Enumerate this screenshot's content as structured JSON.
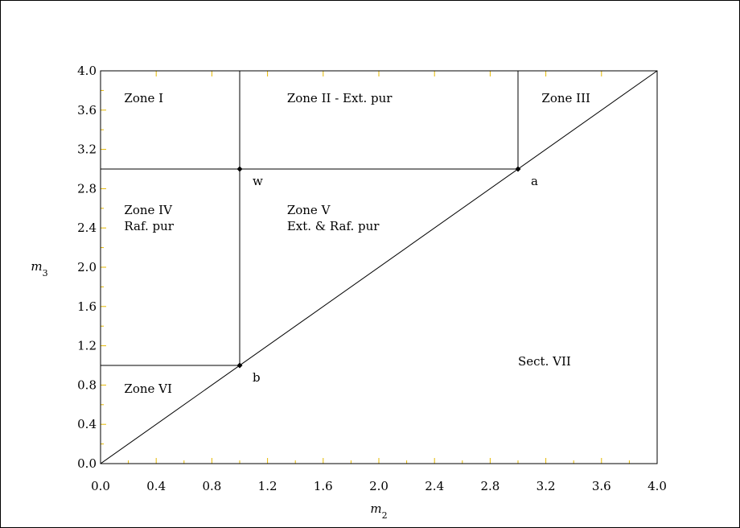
{
  "chart_data": {
    "type": "line",
    "xlabel": "m",
    "xlabel_sub": "2",
    "ylabel": "m",
    "ylabel_sub": "3",
    "xlim": [
      0.0,
      4.0
    ],
    "ylim": [
      0.0,
      4.0
    ],
    "x_ticks": [
      "0.0",
      "0.4",
      "0.8",
      "1.2",
      "1.6",
      "2.0",
      "2.4",
      "2.8",
      "3.2",
      "3.6",
      "4.0"
    ],
    "y_ticks": [
      "0.0",
      "0.4",
      "0.8",
      "1.2",
      "1.6",
      "2.0",
      "2.4",
      "2.8",
      "3.2",
      "3.6",
      "4.0"
    ],
    "grid": false,
    "lines": [
      {
        "name": "diagonal",
        "x": [
          0.0,
          4.0
        ],
        "y": [
          0.0,
          4.0
        ]
      },
      {
        "name": "horizontal-m3-3",
        "x": [
          0.0,
          3.0
        ],
        "y": [
          3.0,
          3.0
        ]
      },
      {
        "name": "horizontal-m3-1",
        "x": [
          0.0,
          1.0
        ],
        "y": [
          1.0,
          1.0
        ]
      },
      {
        "name": "vertical-m2-1",
        "x": [
          1.0,
          1.0
        ],
        "y": [
          1.0,
          4.0
        ]
      },
      {
        "name": "vertical-m2-3",
        "x": [
          3.0,
          3.0
        ],
        "y": [
          3.0,
          4.0
        ]
      }
    ],
    "points": [
      {
        "label": "w",
        "x": 1.0,
        "y": 3.0
      },
      {
        "label": "a",
        "x": 3.0,
        "y": 3.0
      },
      {
        "label": "b",
        "x": 1.0,
        "y": 1.0
      }
    ],
    "zones": [
      {
        "lines": [
          "Zone I"
        ],
        "x": 0.17,
        "y": 3.68
      },
      {
        "lines": [
          "Zone II - Ext. pur"
        ],
        "x": 1.34,
        "y": 3.68
      },
      {
        "lines": [
          "Zone III"
        ],
        "x": 3.17,
        "y": 3.68
      },
      {
        "lines": [
          "Zone IV",
          "Raf. pur"
        ],
        "x": 0.17,
        "y": 2.54
      },
      {
        "lines": [
          "Zone V",
          "Ext. & Raf. pur"
        ],
        "x": 1.34,
        "y": 2.54
      },
      {
        "lines": [
          "Zone VI"
        ],
        "x": 0.17,
        "y": 0.72
      },
      {
        "lines": [
          "Sect. VII"
        ],
        "x": 3.0,
        "y": 1.0
      }
    ]
  }
}
